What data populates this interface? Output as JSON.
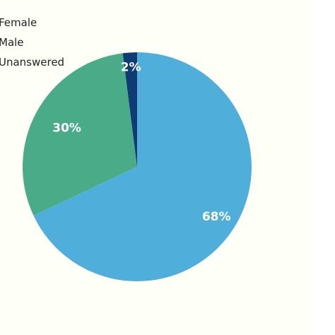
{
  "chart_data": {
    "type": "pie",
    "categories": [
      "Female",
      "Male",
      "Unanswered"
    ],
    "values": [
      68,
      30,
      2
    ],
    "value_labels": [
      "68%",
      "30%",
      "2%"
    ],
    "colors": [
      "#4fafda",
      "#4aab89",
      "#0e3b73"
    ],
    "legend_position": "top-left",
    "title": "",
    "xlabel": "",
    "ylabel": ""
  }
}
